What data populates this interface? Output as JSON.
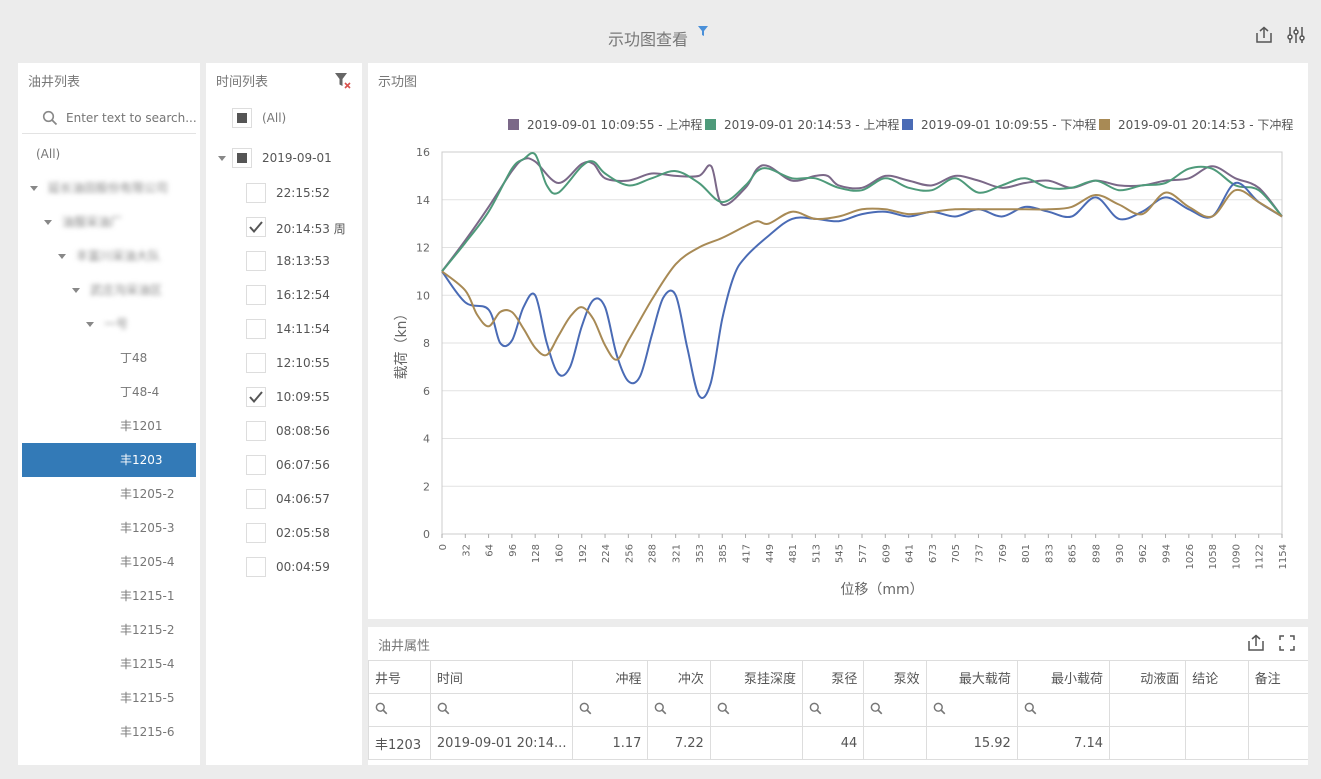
{
  "header": {
    "title": "示功图查看",
    "filter_icon": "funnel-icon",
    "export_icon": "export-icon",
    "settings_icon": "sliders-icon"
  },
  "well_list": {
    "title": "油井列表",
    "search_placeholder": "Enter text to search...",
    "items": [
      {
        "label": "(All)",
        "level": 0,
        "caret": false,
        "blurred": false,
        "selected": false
      },
      {
        "label": "延长油田股份有限公司",
        "level": 0,
        "caret": true,
        "blurred": true,
        "selected": false
      },
      {
        "label": "油服采油厂",
        "level": 1,
        "caret": true,
        "blurred": true,
        "selected": false
      },
      {
        "label": "丰富川采油大队",
        "level": 2,
        "caret": true,
        "blurred": true,
        "selected": false
      },
      {
        "label": "武庄沟采油区",
        "level": 3,
        "caret": true,
        "blurred": true,
        "selected": false
      },
      {
        "label": "一号",
        "level": 4,
        "caret": true,
        "blurred": true,
        "selected": false
      },
      {
        "label": "丁48",
        "level": 5,
        "caret": false,
        "blurred": false,
        "selected": false
      },
      {
        "label": "丁48-4",
        "level": 5,
        "caret": false,
        "blurred": false,
        "selected": false
      },
      {
        "label": "丰1201",
        "level": 5,
        "caret": false,
        "blurred": false,
        "selected": false
      },
      {
        "label": "丰1203",
        "level": 5,
        "caret": false,
        "blurred": false,
        "selected": true
      },
      {
        "label": "丰1205-2",
        "level": 5,
        "caret": false,
        "blurred": false,
        "selected": false
      },
      {
        "label": "丰1205-3",
        "level": 5,
        "caret": false,
        "blurred": false,
        "selected": false
      },
      {
        "label": "丰1205-4",
        "level": 5,
        "caret": false,
        "blurred": false,
        "selected": false
      },
      {
        "label": "丰1215-1",
        "level": 5,
        "caret": false,
        "blurred": false,
        "selected": false
      },
      {
        "label": "丰1215-2",
        "level": 5,
        "caret": false,
        "blurred": false,
        "selected": false
      },
      {
        "label": "丰1215-4",
        "level": 5,
        "caret": false,
        "blurred": false,
        "selected": false
      },
      {
        "label": "丰1215-5",
        "level": 5,
        "caret": false,
        "blurred": false,
        "selected": false
      },
      {
        "label": "丰1215-6",
        "level": 5,
        "caret": false,
        "blurred": false,
        "selected": false
      }
    ]
  },
  "time_list": {
    "title": "时间列表",
    "clear_filter_icon": "clear-filter-icon",
    "all_label": "(All)",
    "date_label": "2019-09-01",
    "times": [
      {
        "label": "22:15:52",
        "checked": false
      },
      {
        "label": "20:14:53 周",
        "checked": true
      },
      {
        "label": "18:13:53",
        "checked": false
      },
      {
        "label": "16:12:54",
        "checked": false
      },
      {
        "label": "14:11:54",
        "checked": false
      },
      {
        "label": "12:10:55",
        "checked": false
      },
      {
        "label": "10:09:55",
        "checked": true
      },
      {
        "label": "08:08:56",
        "checked": false
      },
      {
        "label": "06:07:56",
        "checked": false
      },
      {
        "label": "04:06:57",
        "checked": false
      },
      {
        "label": "02:05:58",
        "checked": false
      },
      {
        "label": "00:04:59",
        "checked": false
      }
    ]
  },
  "chart_panel": {
    "title": "示功图"
  },
  "chart_data": {
    "type": "line",
    "xlabel": "位移（mm）",
    "ylabel": "载荷（kn）",
    "ylim": [
      0,
      16
    ],
    "yticks": [
      0,
      2,
      4,
      6,
      8,
      10,
      12,
      14,
      16
    ],
    "xticks": [
      "0",
      "32",
      "64",
      "96",
      "128",
      "160",
      "192",
      "224",
      "256",
      "288",
      "321",
      "353",
      "385",
      "417",
      "449",
      "481",
      "513",
      "545",
      "577",
      "609",
      "641",
      "673",
      "705",
      "737",
      "769",
      "801",
      "833",
      "865",
      "898",
      "930",
      "962",
      "994",
      "1026",
      "1058",
      "1090",
      "1122",
      "1154"
    ],
    "xlim": [
      0,
      1154
    ],
    "grid": true,
    "legend_position": "top-right",
    "series": [
      {
        "name": "2019-09-01 10:09:55 - 上冲程",
        "color": "#7b6888",
        "x": [
          0,
          32,
          64,
          96,
          112,
          128,
          160,
          192,
          208,
          224,
          256,
          288,
          321,
          353,
          370,
          385,
          417,
          433,
          449,
          481,
          513,
          530,
          545,
          577,
          609,
          641,
          673,
          705,
          737,
          769,
          801,
          833,
          865,
          898,
          930,
          962,
          994,
          1026,
          1058,
          1090,
          1122,
          1154
        ],
        "y": [
          11.0,
          12.3,
          13.7,
          15.2,
          15.7,
          15.6,
          14.7,
          15.5,
          15.5,
          14.9,
          14.8,
          15.1,
          15.0,
          15.0,
          15.4,
          13.8,
          14.5,
          15.3,
          15.4,
          14.8,
          15.0,
          15.0,
          14.6,
          14.5,
          15.0,
          14.8,
          14.6,
          15.0,
          14.8,
          14.5,
          14.7,
          14.8,
          14.5,
          14.8,
          14.6,
          14.6,
          14.8,
          14.9,
          15.4,
          14.9,
          14.5,
          13.3
        ]
      },
      {
        "name": "2019-09-01 20:14:53 - 上冲程",
        "color": "#4e9a7a",
        "x": [
          0,
          32,
          64,
          96,
          112,
          128,
          144,
          160,
          192,
          208,
          224,
          256,
          288,
          321,
          353,
          385,
          417,
          433,
          449,
          481,
          513,
          545,
          577,
          609,
          641,
          673,
          705,
          737,
          769,
          801,
          833,
          865,
          898,
          930,
          962,
          994,
          1026,
          1058,
          1090,
          1122,
          1154
        ],
        "y": [
          11.0,
          12.2,
          13.5,
          15.3,
          15.7,
          15.9,
          14.6,
          14.3,
          15.4,
          15.6,
          15.1,
          14.6,
          14.9,
          15.2,
          14.7,
          13.9,
          14.6,
          15.2,
          15.3,
          14.9,
          14.9,
          14.5,
          14.4,
          14.9,
          14.5,
          14.4,
          14.9,
          14.3,
          14.6,
          14.9,
          14.5,
          14.5,
          14.8,
          14.4,
          14.6,
          14.7,
          15.3,
          15.3,
          14.6,
          14.4,
          13.3
        ]
      },
      {
        "name": "2019-09-01 10:09:55 - 下冲程",
        "color": "#4a6bb5",
        "x": [
          0,
          32,
          64,
          80,
          96,
          112,
          128,
          144,
          160,
          176,
          192,
          208,
          224,
          240,
          256,
          272,
          288,
          304,
          321,
          337,
          353,
          369,
          385,
          401,
          417,
          449,
          481,
          513,
          545,
          577,
          609,
          641,
          673,
          705,
          737,
          769,
          801,
          833,
          865,
          898,
          930,
          962,
          994,
          1026,
          1058,
          1090,
          1122,
          1154
        ],
        "y": [
          11.0,
          9.7,
          9.4,
          8.0,
          8.1,
          9.5,
          10.0,
          8.0,
          6.7,
          7.0,
          8.7,
          9.8,
          9.5,
          7.5,
          6.4,
          6.6,
          8.3,
          9.9,
          10.0,
          7.8,
          5.8,
          6.3,
          9.0,
          10.8,
          11.6,
          12.5,
          13.2,
          13.2,
          13.1,
          13.4,
          13.5,
          13.3,
          13.5,
          13.3,
          13.6,
          13.3,
          13.7,
          13.5,
          13.3,
          14.1,
          13.2,
          13.5,
          14.1,
          13.6,
          13.3,
          14.7,
          13.9,
          13.3
        ]
      },
      {
        "name": "2019-09-01 20:14:53 - 下冲程",
        "color": "#a88a55",
        "x": [
          0,
          32,
          48,
          64,
          80,
          96,
          112,
          128,
          144,
          160,
          176,
          192,
          208,
          224,
          240,
          256,
          288,
          321,
          353,
          385,
          417,
          433,
          449,
          481,
          513,
          545,
          577,
          609,
          641,
          673,
          705,
          737,
          769,
          801,
          833,
          865,
          898,
          930,
          962,
          994,
          1026,
          1058,
          1090,
          1122,
          1154
        ],
        "y": [
          11.0,
          10.2,
          9.2,
          8.7,
          9.3,
          9.3,
          8.6,
          7.8,
          7.5,
          8.3,
          9.1,
          9.5,
          9.0,
          7.9,
          7.3,
          8.1,
          9.8,
          11.3,
          12.0,
          12.4,
          12.9,
          13.1,
          13.0,
          13.5,
          13.2,
          13.3,
          13.6,
          13.6,
          13.4,
          13.5,
          13.6,
          13.6,
          13.6,
          13.6,
          13.6,
          13.7,
          14.2,
          13.8,
          13.4,
          14.3,
          13.7,
          13.3,
          14.4,
          13.9,
          13.3
        ]
      }
    ]
  },
  "props_panel": {
    "title": "油井属性",
    "export_icon": "export-icon",
    "fullscreen_icon": "fullscreen-icon",
    "columns": [
      "井号",
      "时间",
      "冲程",
      "冲次",
      "泵挂深度",
      "泵径",
      "泵效",
      "最大载荷",
      "最小载荷",
      "动液面",
      "结论",
      "备注"
    ],
    "rows": [
      [
        "丰1203",
        "2019-09-01 20:14...",
        "1.17",
        "7.22",
        "",
        "44",
        "",
        "15.92",
        "7.14",
        "",
        "",
        ""
      ]
    ]
  }
}
